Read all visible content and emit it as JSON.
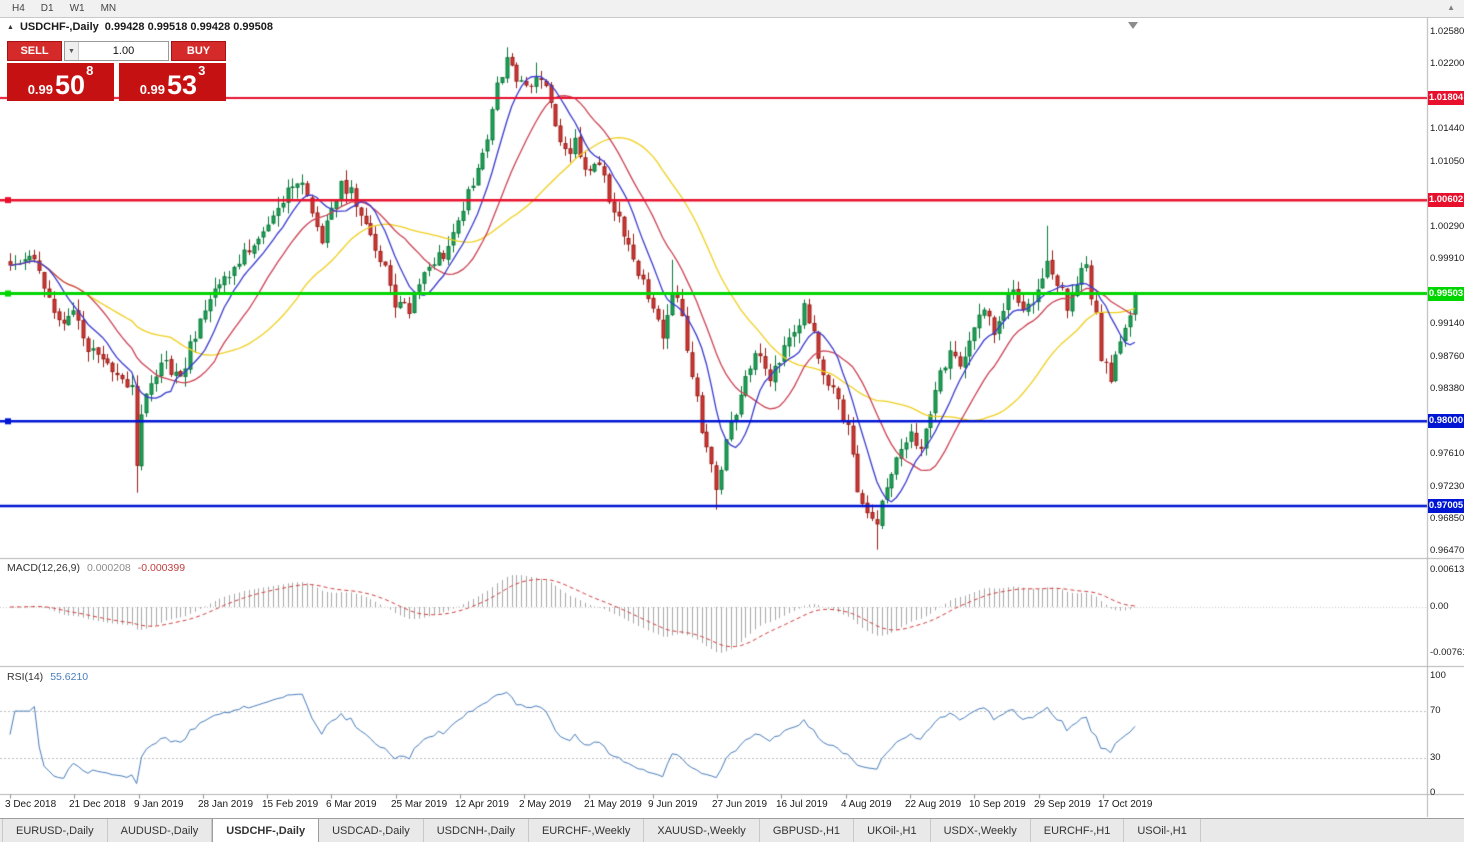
{
  "icons": {
    "collapse": "▲",
    "toolbar_expand": "▲",
    "volume_dropdown": "▼"
  },
  "toolbar": {
    "timeframes": [
      "H4",
      "D1",
      "W1",
      "MN"
    ]
  },
  "chart": {
    "title": {
      "symbol": "USDCHF-,Daily",
      "ohlc": "0.99428 0.99518 0.99428 0.99508"
    },
    "one_click": {
      "sell_label": "SELL",
      "buy_label": "BUY",
      "volume": "1.00",
      "sell_price": {
        "prefix": "0.99",
        "big": "50",
        "sup": "8"
      },
      "buy_price": {
        "prefix": "0.99",
        "big": "53",
        "sup": "3"
      }
    }
  },
  "chart_data": {
    "type": "candlestick",
    "symbol": "USDCHF",
    "period": "Daily",
    "ohlc_display": {
      "open": "0.99428",
      "high": "0.99518",
      "low": "0.99428",
      "close": "0.99508"
    },
    "candle_count": 232,
    "last_close": 0.99508,
    "y_axis": {
      "ticks": [
        1.0258,
        1.022,
        1.0144,
        1.0105,
        1.0029,
        0.9991,
        0.9914,
        0.9876,
        0.9838,
        0.9761,
        0.9723,
        0.9685,
        0.9647
      ],
      "range": [
        0.963,
        1.0275
      ]
    },
    "x_axis": {
      "labels": [
        "3 Dec 2018",
        "21 Dec 2018",
        "9 Jan 2019",
        "28 Jan 2019",
        "15 Feb 2019",
        "6 Mar 2019",
        "25 Mar 2019",
        "12 Apr 2019",
        "2 May 2019",
        "21 May 2019",
        "9 Jun 2019",
        "27 Jun 2019",
        "16 Jul 2019",
        "4 Aug 2019",
        "22 Aug 2019",
        "10 Sep 2019",
        "29 Sep 2019",
        "17 Oct 2019"
      ],
      "candles_per_label": 13.2
    },
    "horizontal_lines": [
      {
        "price": 1.01804,
        "label": "1.01804",
        "color": "#e8112d",
        "width": 2,
        "handle": false
      },
      {
        "price": 1.00602,
        "label": "1.00602",
        "color": "#e8112d",
        "width": 2.5,
        "handle": true
      },
      {
        "price": 0.99503,
        "label": "0.99503",
        "color": "#00d500",
        "width": 3,
        "handle": true
      },
      {
        "price": 0.98,
        "label": "0.98000",
        "color": "#0015d4",
        "width": 2.5,
        "handle": true
      },
      {
        "price": 0.97005,
        "label": "0.97005",
        "color": "#0015d4",
        "width": 2.5,
        "handle": false
      }
    ],
    "moving_averages": [
      {
        "period": 8,
        "color": "#3c3cd0"
      },
      {
        "period": 17,
        "color": "#cc4455"
      },
      {
        "period": 34,
        "color": "#f0d020"
      }
    ],
    "price_path_anchors": [
      [
        0,
        0.9985
      ],
      [
        4,
        1.0
      ],
      [
        8,
        0.9945
      ],
      [
        11,
        0.991
      ],
      [
        13,
        0.993
      ],
      [
        16,
        0.989
      ],
      [
        19,
        0.9868
      ],
      [
        22,
        0.9852
      ],
      [
        25,
        0.9838
      ],
      [
        26,
        0.9755
      ],
      [
        27,
        0.98
      ],
      [
        29,
        0.9852
      ],
      [
        32,
        0.987
      ],
      [
        35,
        0.9848
      ],
      [
        38,
        0.9905
      ],
      [
        40,
        0.993
      ],
      [
        43,
        0.9958
      ],
      [
        46,
        0.9978
      ],
      [
        49,
        1.0005
      ],
      [
        53,
        1.0035
      ],
      [
        56,
        1.0062
      ],
      [
        59,
        1.0085
      ],
      [
        62,
        1.0048
      ],
      [
        64,
        1.0015
      ],
      [
        66,
        1.0045
      ],
      [
        68,
        1.0082
      ],
      [
        71,
        1.006
      ],
      [
        74,
        1.0022
      ],
      [
        77,
        0.9978
      ],
      [
        79,
        0.9942
      ],
      [
        82,
        0.9928
      ],
      [
        84,
        0.9962
      ],
      [
        87,
        0.999
      ],
      [
        90,
        1.0002
      ],
      [
        92,
        1.003
      ],
      [
        95,
        1.0082
      ],
      [
        98,
        1.014
      ],
      [
        100,
        1.019
      ],
      [
        102,
        1.0222
      ],
      [
        104,
        1.02
      ],
      [
        106,
        1.0188
      ],
      [
        108,
        1.0208
      ],
      [
        110,
        1.0188
      ],
      [
        112,
        1.0145
      ],
      [
        114,
        1.0112
      ],
      [
        116,
        1.0126
      ],
      [
        119,
        1.0092
      ],
      [
        121,
        1.0106
      ],
      [
        123,
        1.0062
      ],
      [
        126,
        1.0022
      ],
      [
        129,
        0.9978
      ],
      [
        132,
        0.9932
      ],
      [
        134,
        0.9905
      ],
      [
        136,
        0.9958
      ],
      [
        138,
        0.9922
      ],
      [
        140,
        0.9852
      ],
      [
        142,
        0.9792
      ],
      [
        144,
        0.9748
      ],
      [
        145,
        0.9722
      ],
      [
        147,
        0.9772
      ],
      [
        150,
        0.9832
      ],
      [
        153,
        0.9882
      ],
      [
        156,
        0.9842
      ],
      [
        158,
        0.9872
      ],
      [
        161,
        0.9902
      ],
      [
        163,
        0.9932
      ],
      [
        165,
        0.9902
      ],
      [
        167,
        0.9862
      ],
      [
        169,
        0.9832
      ],
      [
        172,
        0.9792
      ],
      [
        174,
        0.9722
      ],
      [
        176,
        0.97
      ],
      [
        178,
        0.9682
      ],
      [
        180,
        0.9722
      ],
      [
        182,
        0.9752
      ],
      [
        185,
        0.9792
      ],
      [
        187,
        0.9762
      ],
      [
        189,
        0.9812
      ],
      [
        191,
        0.9852
      ],
      [
        193,
        0.9882
      ],
      [
        195,
        0.9862
      ],
      [
        198,
        0.9902
      ],
      [
        200,
        0.9932
      ],
      [
        202,
        0.9902
      ],
      [
        204,
        0.9936
      ],
      [
        206,
        0.9962
      ],
      [
        208,
        0.9932
      ],
      [
        211,
        0.9952
      ],
      [
        213,
        0.9986
      ],
      [
        215,
        0.9962
      ],
      [
        217,
        0.9936
      ],
      [
        219,
        0.9962
      ],
      [
        221,
        0.9982
      ],
      [
        223,
        0.9922
      ],
      [
        224,
        0.9872
      ],
      [
        226,
        0.9852
      ],
      [
        228,
        0.9892
      ],
      [
        230,
        0.9932
      ],
      [
        231,
        0.9951
      ]
    ],
    "special_candles": {
      "26": {
        "low": 0.9716
      },
      "102": {
        "high": 1.024
      },
      "108": {
        "high": 1.0222
      },
      "136": {
        "high": 0.999
      },
      "145": {
        "low": 0.9696
      },
      "178": {
        "low": 0.9649
      },
      "213": {
        "high": 1.003
      }
    },
    "macd": {
      "label": "MACD(12,26,9)",
      "value_main": "0.000208",
      "value_signal": "-0.000399",
      "fast": 12,
      "slow": 26,
      "signal": 9,
      "ticks": [
        {
          "label": "0.00613",
          "value": 0.00613
        },
        {
          "label": "0.00",
          "value": 0
        },
        {
          "label": "-0.00761",
          "value": -0.00761
        }
      ]
    },
    "rsi": {
      "label": "RSI(14)",
      "value": "55.6210",
      "period": 14,
      "ticks": [
        {
          "label": "100",
          "value": 100
        },
        {
          "label": "70",
          "value": 70
        },
        {
          "label": "30",
          "value": 30
        },
        {
          "label": "0",
          "value": 0
        }
      ],
      "levels": [
        70,
        30
      ]
    },
    "colors": {
      "bull": "#1fa258",
      "bull_border": "#0c7a3c",
      "bear": "#d23932",
      "bear_border": "#9a1f1a",
      "macd_hist": "#a9a9a9",
      "macd_signal": "#d04040",
      "rsi_line": "#4a7ebb"
    }
  },
  "tabs": [
    {
      "label": "EURUSD-,Daily",
      "active": false
    },
    {
      "label": "AUDUSD-,Daily",
      "active": false
    },
    {
      "label": "USDCHF-,Daily",
      "active": true
    },
    {
      "label": "USDCAD-,Daily",
      "active": false
    },
    {
      "label": "USDCNH-,Daily",
      "active": false
    },
    {
      "label": "EURCHF-,Weekly",
      "active": false
    },
    {
      "label": "XAUUSD-,Weekly",
      "active": false
    },
    {
      "label": "GBPUSD-,H1",
      "active": false
    },
    {
      "label": "UKOil-,H1",
      "active": false
    },
    {
      "label": "USDX-,Weekly",
      "active": false
    },
    {
      "label": "EURCHF-,H1",
      "active": false
    },
    {
      "label": "USOil-,H1",
      "active": false
    }
  ]
}
